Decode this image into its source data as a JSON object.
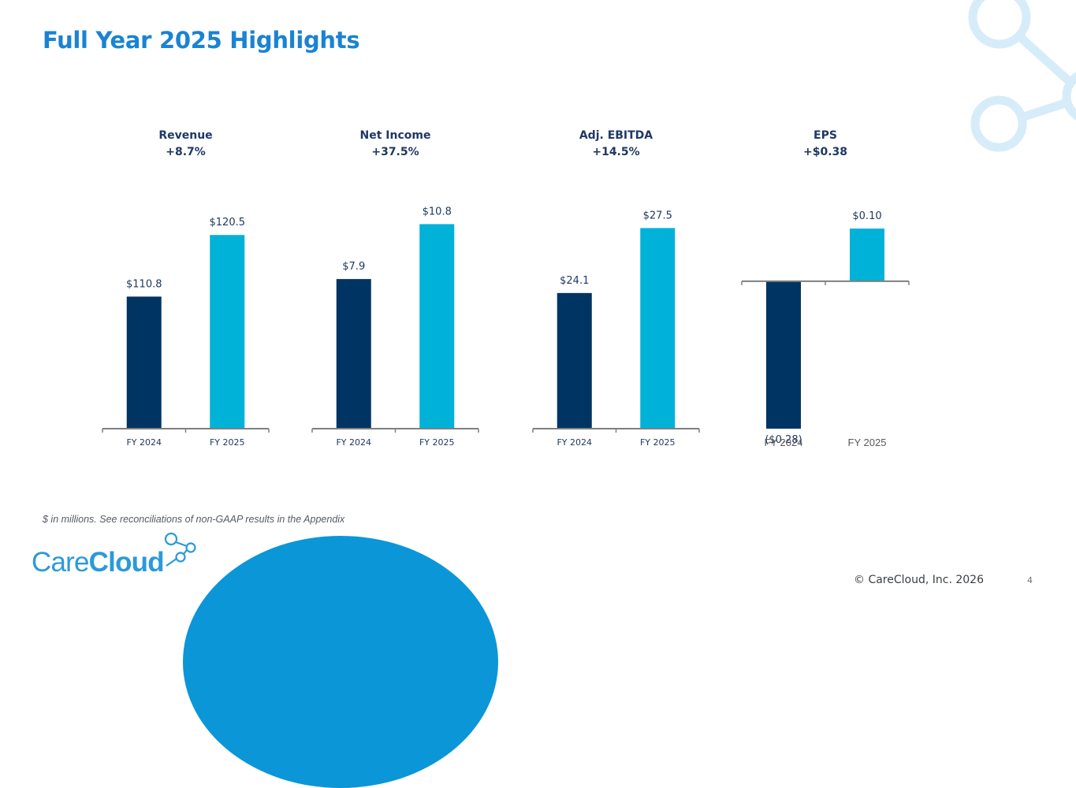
{
  "page": {
    "title": "Full Year 2025 Highlights",
    "footnote": "$ in millions. See reconciliations of non-GAAP results in the Appendix",
    "logo_text_1": "Care",
    "logo_text_2": "Cloud",
    "copyright": "© CareCloud, Inc. 2026",
    "page_number": "4"
  },
  "colors": {
    "title": "#1a83d2",
    "fy2024": "#003462",
    "fy2025": "#00b2d8",
    "axis": "#7f7f7f",
    "text": "#1f3864"
  },
  "chart_data": [
    {
      "type": "bar",
      "title": "Revenue",
      "subtitle": "+8.7%",
      "categories": [
        "FY 2024",
        "FY 2025"
      ],
      "values": [
        110.8,
        120.5
      ],
      "labels": [
        "$110.8",
        "$120.5"
      ],
      "ylim": [
        90,
        124
      ]
    },
    {
      "type": "bar",
      "title": "Net Income",
      "subtitle": "+37.5%",
      "categories": [
        "FY 2024",
        "FY 2025"
      ],
      "values": [
        7.9,
        10.8
      ],
      "labels": [
        "$7.9",
        "$10.8"
      ],
      "ylim": [
        0,
        11.4
      ]
    },
    {
      "type": "bar",
      "title": "Adj. EBITDA",
      "subtitle": "+14.5%",
      "categories": [
        "FY 2024",
        "FY 2025"
      ],
      "values": [
        24.1,
        27.5
      ],
      "labels": [
        "$24.1",
        "$27.5"
      ],
      "ylim": [
        17,
        28.3
      ]
    },
    {
      "type": "bar",
      "title": "EPS",
      "subtitle": "+$0.38",
      "categories": [
        "FY 2024",
        "FY 2025"
      ],
      "values": [
        -0.28,
        0.1
      ],
      "labels": [
        "($0.28)",
        "$0.10"
      ],
      "ylim": [
        -0.28,
        0.13
      ]
    }
  ]
}
